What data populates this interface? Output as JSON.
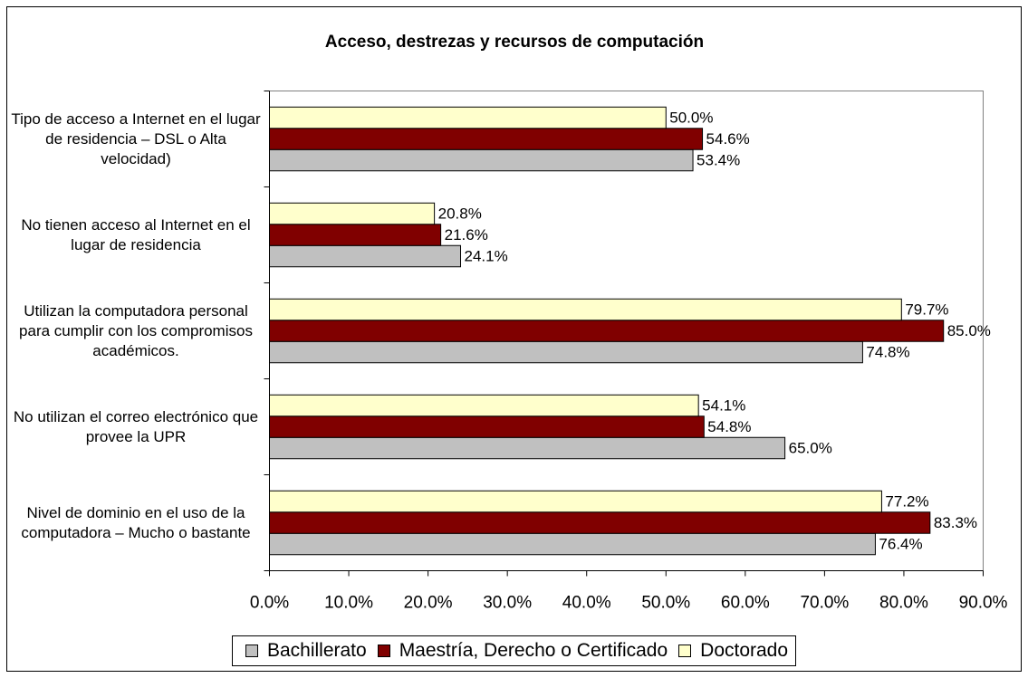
{
  "chart_data": {
    "type": "bar",
    "orientation": "horizontal",
    "title": "Acceso, destrezas y recursos de computación",
    "categories": [
      "Tipo de acceso a Internet en el lugar de residencia – DSL o Alta velocidad)",
      "No tienen acceso al Internet en el lugar de residencia",
      "Utilizan la computadora personal para cumplir con los compromisos académicos.",
      "No utilizan el correo electrónico que provee la UPR",
      "Nivel de dominio en el uso de la computadora – Mucho o bastante"
    ],
    "series": [
      {
        "name": "Bachillerato",
        "color": "#c0c0c0",
        "values": [
          53.4,
          24.1,
          74.8,
          65.0,
          76.4
        ],
        "value_labels": [
          "53.4%",
          "24.1%",
          "74.8%",
          "65.0%",
          "76.4%"
        ]
      },
      {
        "name": "Maestría, Derecho o Certificado",
        "color": "#800000",
        "values": [
          54.6,
          21.6,
          85.0,
          54.8,
          83.3
        ],
        "value_labels": [
          "54.6%",
          "21.6%",
          "85.0%",
          "54.8%",
          "83.3%"
        ]
      },
      {
        "name": "Doctorado",
        "color": "#ffffcc",
        "values": [
          50.0,
          20.8,
          79.7,
          54.1,
          77.2
        ],
        "value_labels": [
          "50.0%",
          "20.8%",
          "79.7%",
          "54.1%",
          "77.2%"
        ]
      }
    ],
    "xlim": [
      0,
      90
    ],
    "xticks": [
      {
        "value": 0,
        "label": "0.0%"
      },
      {
        "value": 10,
        "label": "10.0%"
      },
      {
        "value": 20,
        "label": "20.0%"
      },
      {
        "value": 30,
        "label": "30.0%"
      },
      {
        "value": 40,
        "label": "40.0%"
      },
      {
        "value": 50,
        "label": "50.0%"
      },
      {
        "value": 60,
        "label": "60.0%"
      },
      {
        "value": 70,
        "label": "70.0%"
      },
      {
        "value": 80,
        "label": "80.0%"
      },
      {
        "value": 90,
        "label": "90.0%"
      }
    ],
    "legend": "bottom"
  }
}
